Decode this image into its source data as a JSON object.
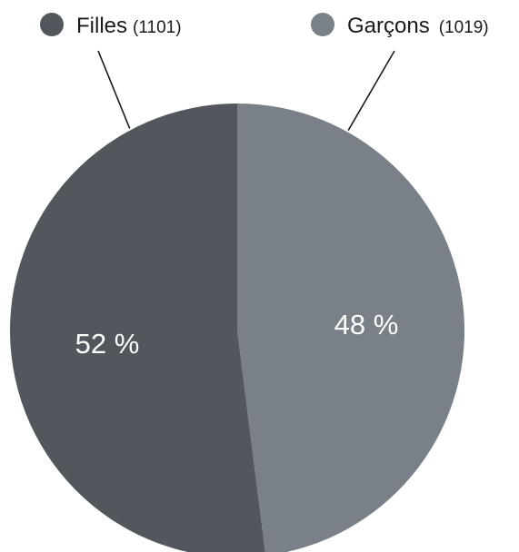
{
  "chart_data": {
    "type": "pie",
    "title": "",
    "slices": [
      {
        "name": "Filles",
        "count": "(1101)",
        "value": 52,
        "value_label": "52 %",
        "color": "#52575e"
      },
      {
        "name": "Garçons",
        "count": "(1019)",
        "value": 48,
        "value_label": "48 %",
        "color": "#798087"
      }
    ],
    "legend_placement": "top"
  }
}
